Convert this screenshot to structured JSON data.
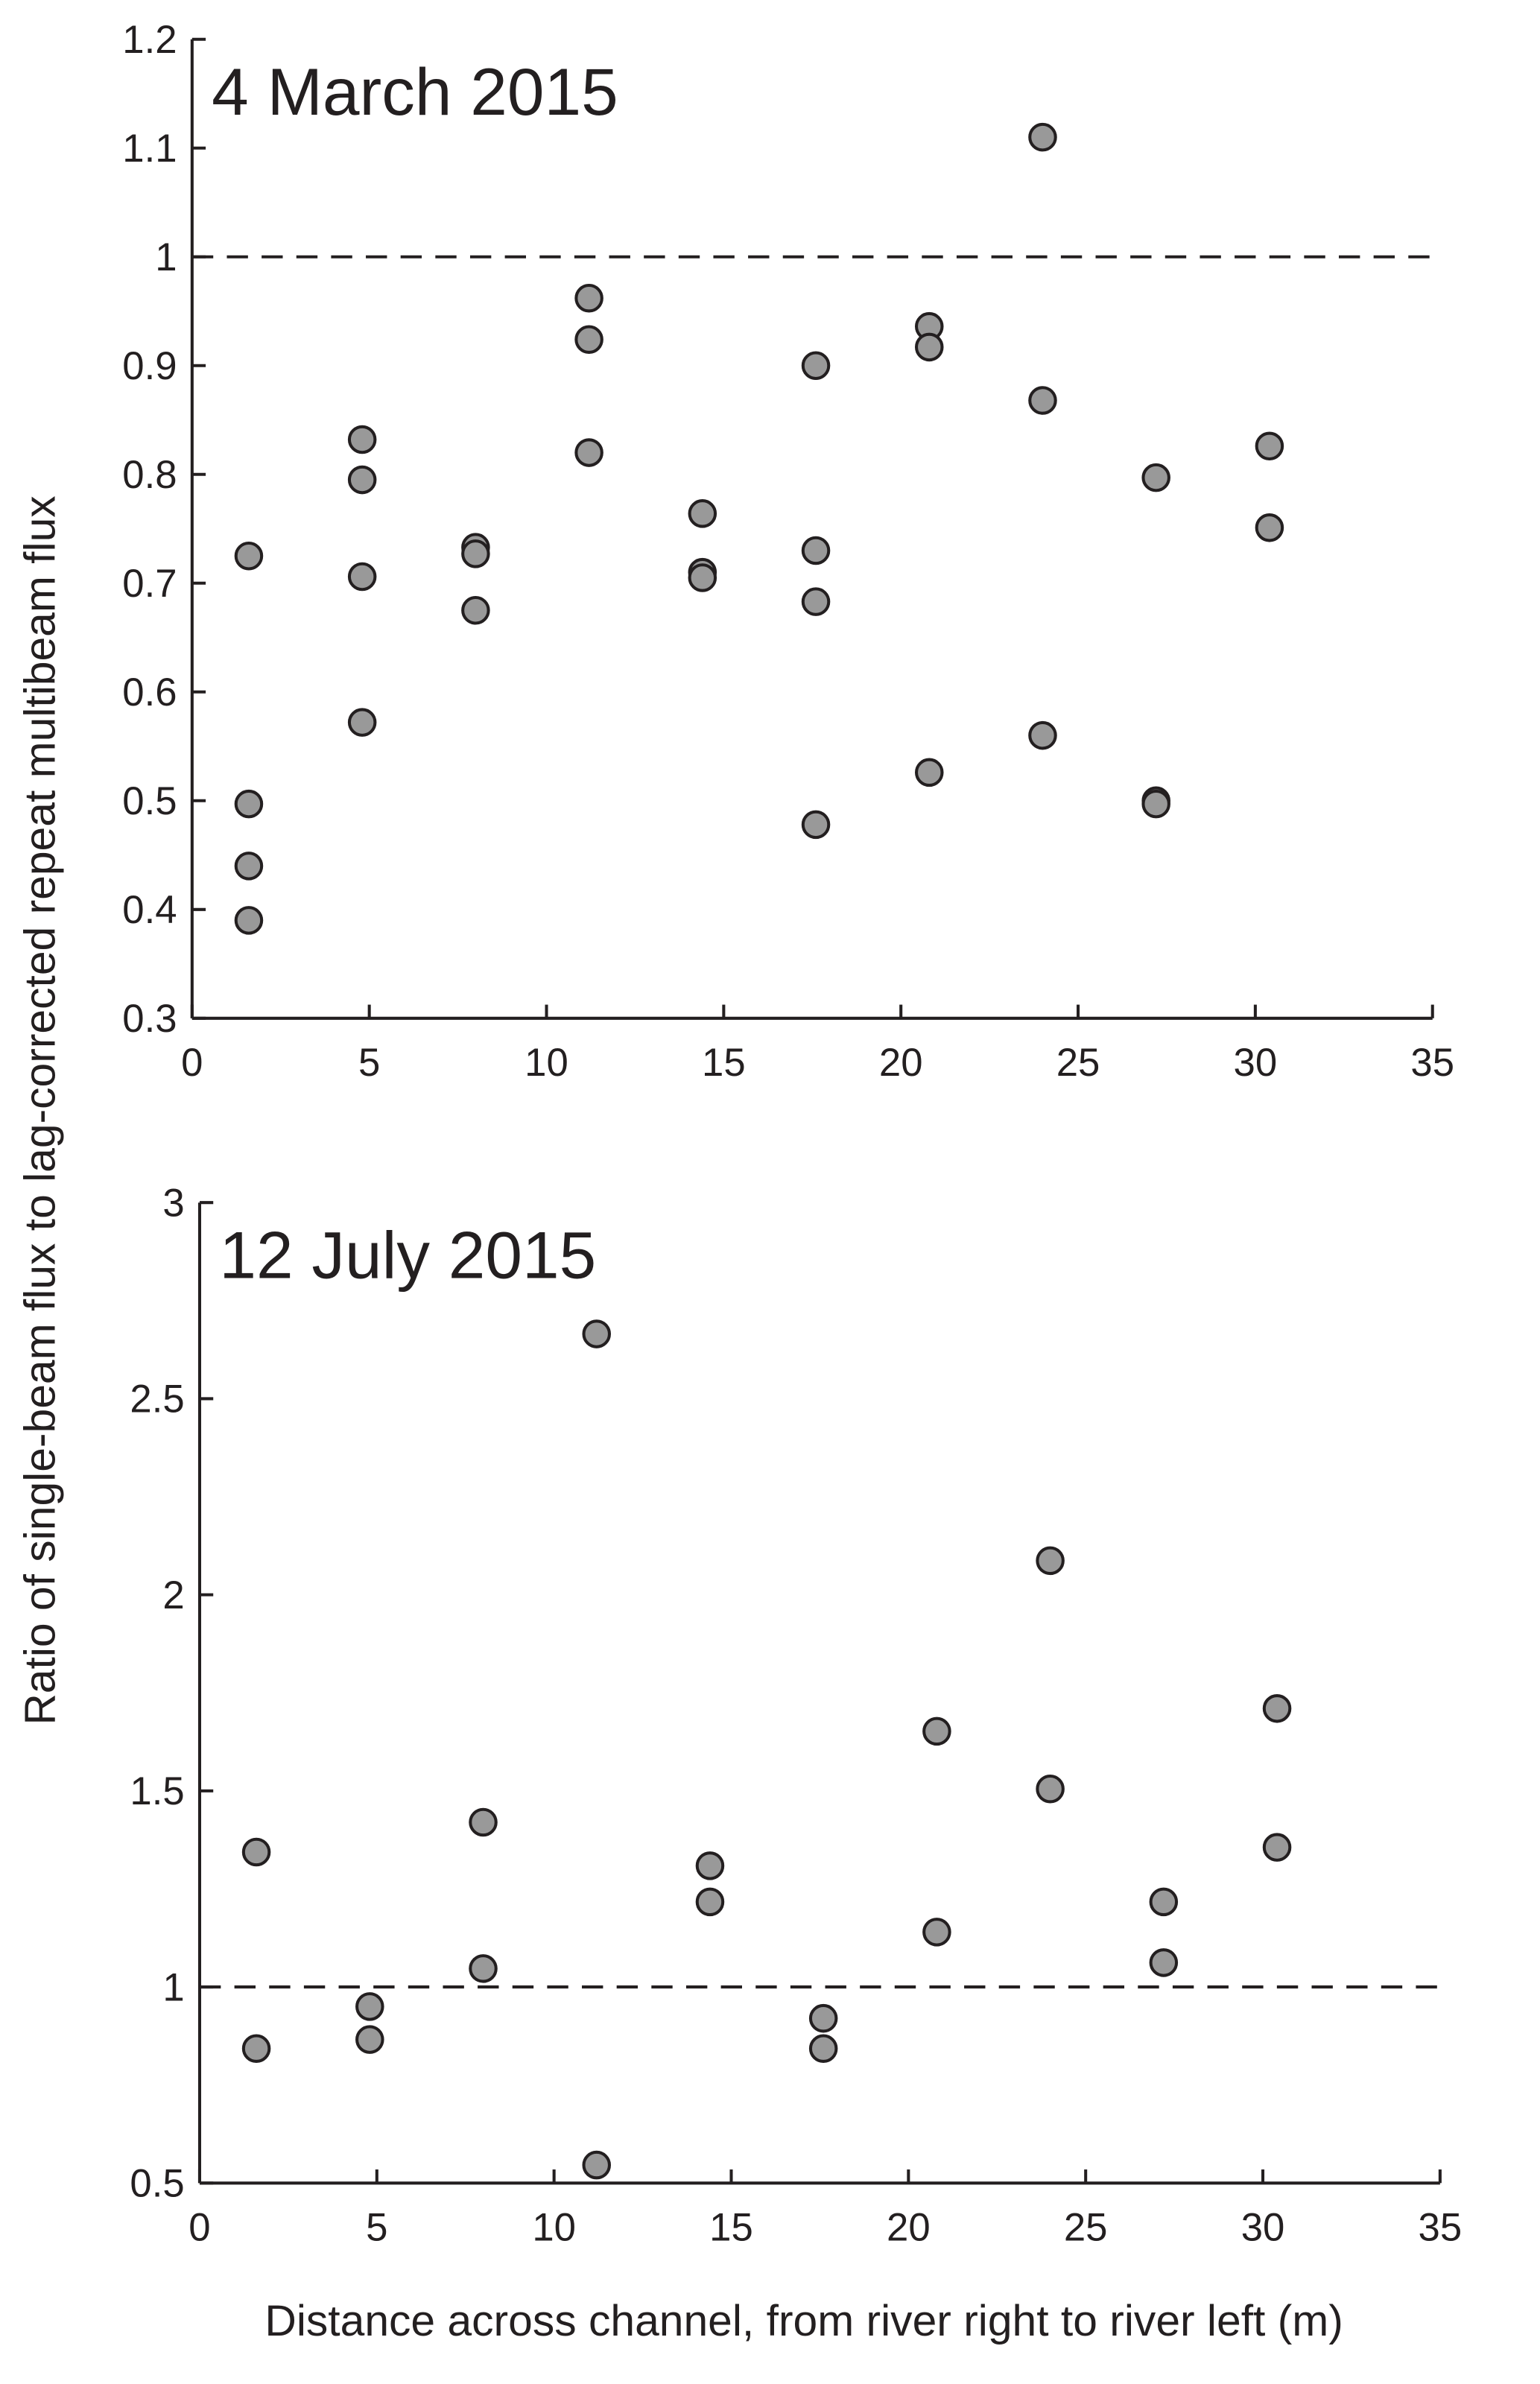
{
  "chart_data": [
    {
      "type": "scatter",
      "title": "4 March 2015",
      "ylabel": "Ratio of single-beam flux to lag-corrected repeat multibeam flux",
      "x": [
        1.6,
        1.6,
        1.6,
        1.6,
        4.8,
        4.8,
        4.8,
        4.8,
        8,
        8,
        8,
        11.2,
        11.2,
        11.2,
        14.4,
        14.4,
        14.4,
        17.6,
        17.6,
        17.6,
        17.6,
        20.8,
        20.8,
        20.8,
        24,
        24,
        24,
        27.2,
        27.2,
        27.2,
        30.4,
        30.4
      ],
      "values": [
        0.725,
        0.497,
        0.44,
        0.39,
        0.832,
        0.795,
        0.706,
        0.572,
        0.733,
        0.727,
        0.675,
        0.962,
        0.924,
        0.82,
        0.764,
        0.71,
        0.705,
        0.9,
        0.73,
        0.683,
        0.478,
        0.936,
        0.917,
        0.526,
        1.11,
        0.868,
        0.56,
        0.797,
        0.5,
        0.497,
        0.826,
        0.751
      ],
      "color": "#999999",
      "xlim": [
        0,
        35
      ],
      "xticks": [
        0,
        5,
        10,
        15,
        20,
        25,
        30,
        35
      ],
      "ylim": [
        0.3,
        1.2
      ],
      "yticks": [
        0.3,
        0.4,
        0.5,
        0.6,
        0.7,
        0.8,
        0.9,
        1,
        1.1,
        1.2
      ],
      "reference_line": 1
    },
    {
      "type": "scatter",
      "title": "12 July 2015",
      "xlabel": "Distance across channel, from river right to river left (m)",
      "x": [
        1.6,
        1.6,
        4.8,
        4.8,
        8,
        8,
        11.2,
        11.2,
        14.4,
        14.4,
        17.6,
        17.6,
        20.8,
        20.8,
        24,
        24,
        27.2,
        27.2,
        30.4,
        30.4
      ],
      "values": [
        1.344,
        0.843,
        0.95,
        0.866,
        1.42,
        1.047,
        2.665,
        0.546,
        1.309,
        1.217,
        0.92,
        0.843,
        1.652,
        1.14,
        2.087,
        1.505,
        1.217,
        1.062,
        1.71,
        1.356
      ],
      "color": "#999999",
      "xlim": [
        0,
        35
      ],
      "xticks": [
        0,
        5,
        10,
        15,
        20,
        25,
        30,
        35
      ],
      "ylim": [
        0.5,
        3
      ],
      "yticks": [
        0.5,
        1,
        1.5,
        2,
        2.5,
        3
      ],
      "reference_line": 1
    }
  ]
}
